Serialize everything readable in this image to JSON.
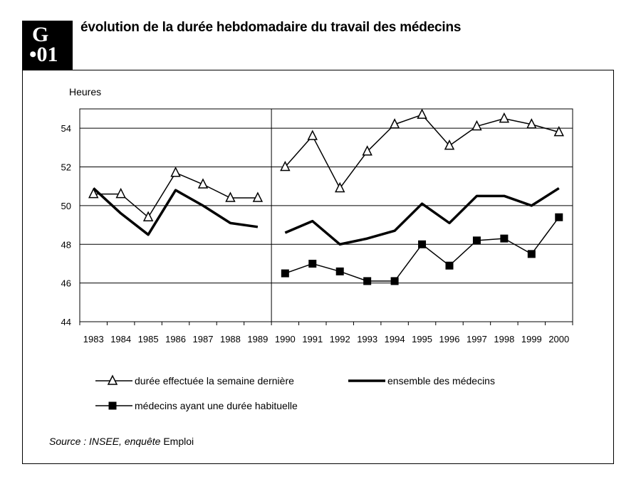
{
  "badge": {
    "line1": "G",
    "line2": "•01"
  },
  "title": "évolution de la durée hebdomadaire du travail des médecins",
  "source": {
    "label": "Source :",
    "italic_part": "INSEE, enquête",
    "normal_part": "Emploi"
  },
  "chart_data": {
    "type": "line",
    "ylabel": "Heures",
    "ylim": [
      44,
      55
    ],
    "yticks": [
      44,
      46,
      48,
      50,
      52,
      54
    ],
    "x": [
      "1983",
      "1984",
      "1985",
      "1986",
      "1987",
      "1988",
      "1989",
      "1990",
      "1991",
      "1992",
      "1993",
      "1994",
      "1995",
      "1996",
      "1997",
      "1998",
      "1999",
      "2000"
    ],
    "break_between": [
      "1989",
      "1990"
    ],
    "grid": "horizontal",
    "series": [
      {
        "name": "durée effectuée la semaine dernière",
        "marker": "open-triangle",
        "segments": [
          {
            "x": [
              "1983",
              "1984",
              "1985",
              "1986",
              "1987",
              "1988",
              "1989"
            ],
            "values": [
              50.6,
              50.6,
              49.4,
              51.7,
              51.1,
              50.4,
              50.4
            ]
          },
          {
            "x": [
              "1990",
              "1991",
              "1992",
              "1993",
              "1994",
              "1995",
              "1996",
              "1997",
              "1998",
              "1999",
              "2000"
            ],
            "values": [
              52.0,
              53.6,
              50.9,
              52.8,
              54.2,
              54.7,
              53.1,
              54.1,
              54.5,
              54.2,
              53.8
            ]
          }
        ]
      },
      {
        "name": "ensemble des médecins",
        "marker": "none",
        "line": "thick",
        "segments": [
          {
            "x": [
              "1983",
              "1984",
              "1985",
              "1986",
              "1987",
              "1988",
              "1989"
            ],
            "values": [
              50.9,
              49.6,
              48.5,
              50.8,
              50.0,
              49.1,
              48.9
            ]
          },
          {
            "x": [
              "1990",
              "1991",
              "1992",
              "1993",
              "1994",
              "1995",
              "1996",
              "1997",
              "1998",
              "1999",
              "2000"
            ],
            "values": [
              48.6,
              49.2,
              48.0,
              48.3,
              48.7,
              50.1,
              49.1,
              50.5,
              50.5,
              50.0,
              50.9
            ]
          }
        ]
      },
      {
        "name": "médecins ayant une durée habituelle",
        "marker": "filled-square",
        "segments": [
          {
            "x": [
              "1990",
              "1991",
              "1992",
              "1993",
              "1994",
              "1995",
              "1996",
              "1997",
              "1998",
              "1999",
              "2000"
            ],
            "values": [
              46.5,
              47.0,
              46.6,
              46.1,
              46.1,
              48.0,
              46.9,
              48.2,
              48.3,
              47.5,
              49.4
            ]
          }
        ]
      }
    ]
  }
}
